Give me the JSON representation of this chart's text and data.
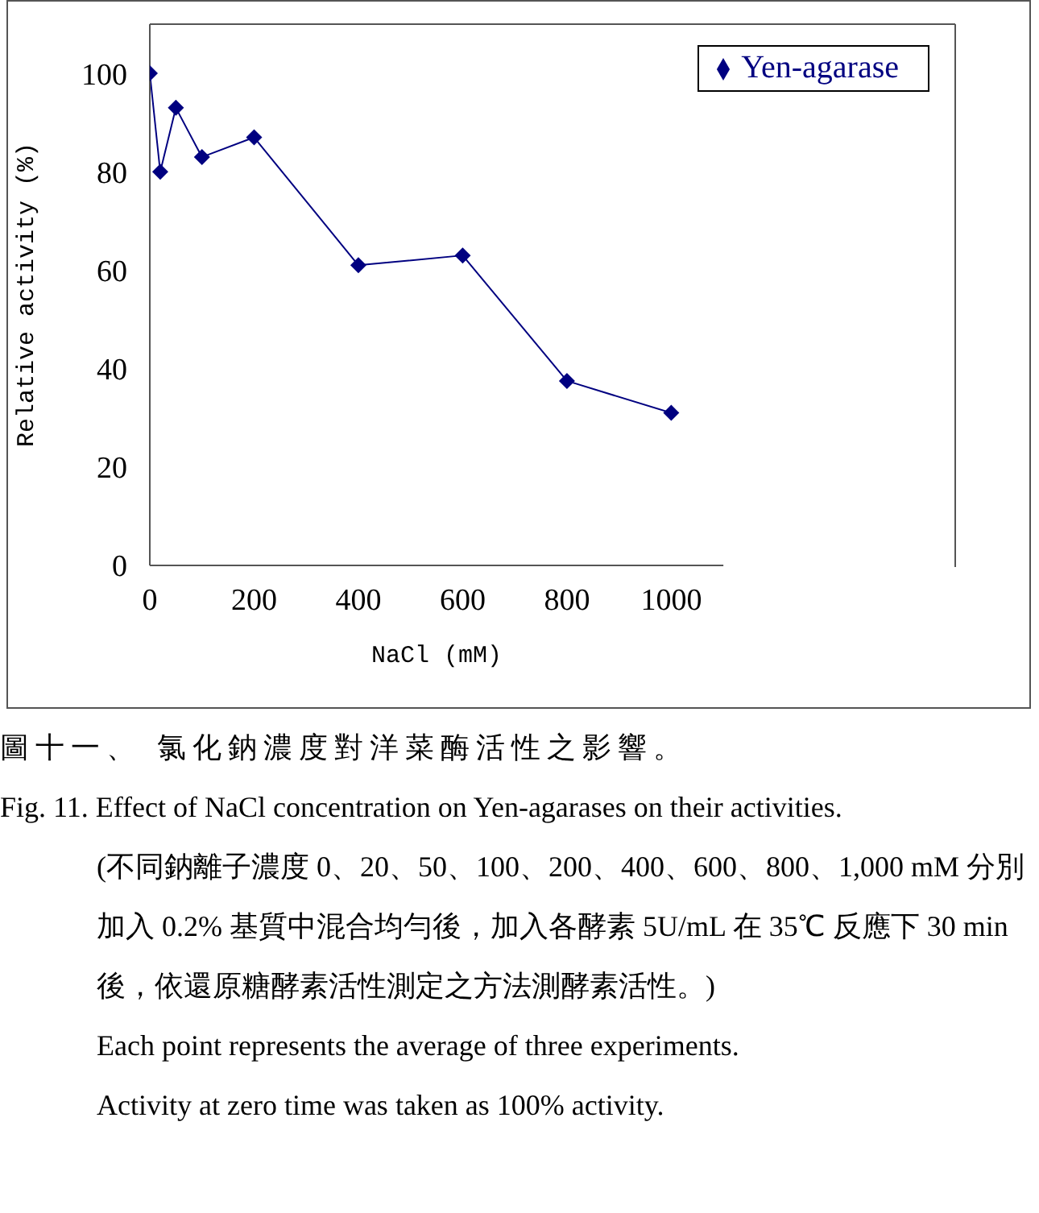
{
  "chart_data": {
    "type": "line",
    "xlabel": "NaCl (mM)",
    "ylabel": "Relative activity (%)",
    "x": [
      0,
      20,
      50,
      100,
      200,
      400,
      600,
      800,
      1000
    ],
    "series": [
      {
        "name": "Yen-agarase",
        "color": "#000080",
        "values": [
          100,
          80,
          93,
          83,
          87,
          61,
          63,
          37.5,
          31
        ]
      }
    ],
    "xlim": [
      0,
      1100
    ],
    "xticks": [
      0,
      200,
      400,
      600,
      800,
      1000
    ],
    "ylim": [
      0,
      110
    ],
    "yticks": [
      0,
      20,
      40,
      60,
      80,
      100
    ],
    "grid": false,
    "legend": "top right",
    "marker": "diamond",
    "line_style": "solid",
    "annotations": [
      "圖十一、 氯化鈉濃度對洋菜酶活性之影響。",
      "Fig. 11. Effect of NaCl concentration on Yen-agarases on their activities.",
      "(不同鈉離子濃度 0、20、50、100、200、400、600、800、1,000 mM 分別加入 0.2% 基質中混合均勻後，加入各酵素 5U/mL 在 35℃ 反應下 30 min 後，依還原糖酵素活性測定之方法測酵素活性。)",
      "Each point represents the average of three experiments.",
      "Activity at zero time was taken as 100% activity."
    ]
  }
}
